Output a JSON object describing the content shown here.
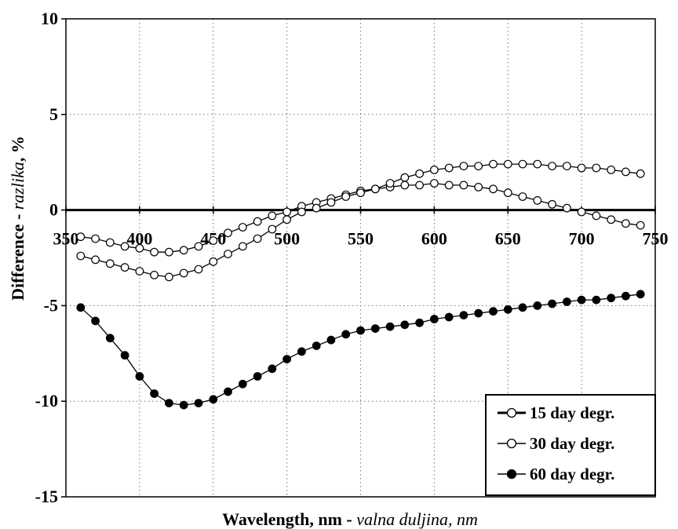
{
  "chart_data": {
    "type": "line",
    "xlim": [
      350,
      750
    ],
    "ylim": [
      -15,
      10
    ],
    "x_ticks": [
      350,
      400,
      450,
      500,
      550,
      600,
      650,
      700,
      750
    ],
    "y_ticks": [
      10,
      5,
      0,
      -5,
      -10,
      -15
    ],
    "x_tick_labels": [
      "350",
      "400",
      "450",
      "500",
      "550",
      "600",
      "650",
      "700",
      "750"
    ],
    "y_tick_labels": [
      "10",
      "5",
      "0",
      "-5",
      "-10",
      "-15"
    ],
    "xlabel_bold": "Wavelength, nm - ",
    "xlabel_italic": "valna duljina, nm",
    "ylabel_bold": "Difference - ",
    "ylabel_italic": "razlika",
    "ylabel_suffix": ", %",
    "grid": true,
    "legend_position": "bottom-right",
    "x": [
      360,
      370,
      380,
      390,
      400,
      410,
      420,
      430,
      440,
      450,
      460,
      470,
      480,
      490,
      500,
      510,
      520,
      530,
      540,
      550,
      560,
      570,
      580,
      590,
      600,
      610,
      620,
      630,
      640,
      650,
      660,
      670,
      680,
      690,
      700,
      710,
      720,
      730,
      740
    ],
    "series": [
      {
        "name": "15 day degr.",
        "marker": "open",
        "values": [
          -1.4,
          -1.5,
          -1.7,
          -1.9,
          -2.0,
          -2.2,
          -2.2,
          -2.1,
          -1.9,
          -1.6,
          -1.2,
          -0.9,
          -0.6,
          -0.3,
          -0.1,
          0.2,
          0.4,
          0.6,
          0.8,
          1.0,
          1.1,
          1.2,
          1.3,
          1.3,
          1.4,
          1.3,
          1.3,
          1.2,
          1.1,
          0.9,
          0.7,
          0.5,
          0.3,
          0.1,
          -0.1,
          -0.3,
          -0.5,
          -0.7,
          -0.8
        ]
      },
      {
        "name": "30 day degr.",
        "marker": "open",
        "values": [
          -2.4,
          -2.6,
          -2.8,
          -3.0,
          -3.2,
          -3.4,
          -3.5,
          -3.3,
          -3.1,
          -2.7,
          -2.3,
          -1.9,
          -1.5,
          -1.0,
          -0.5,
          -0.1,
          0.1,
          0.4,
          0.7,
          0.9,
          1.1,
          1.4,
          1.7,
          1.9,
          2.1,
          2.2,
          2.3,
          2.3,
          2.4,
          2.4,
          2.4,
          2.4,
          2.3,
          2.3,
          2.2,
          2.2,
          2.1,
          2.0,
          1.9
        ]
      },
      {
        "name": "60 day degr.",
        "marker": "filled",
        "values": [
          -5.1,
          -5.8,
          -6.7,
          -7.6,
          -8.7,
          -9.6,
          -10.1,
          -10.2,
          -10.1,
          -9.9,
          -9.5,
          -9.1,
          -8.7,
          -8.3,
          -7.8,
          -7.4,
          -7.1,
          -6.8,
          -6.5,
          -6.3,
          -6.2,
          -6.1,
          -6.0,
          -5.9,
          -5.7,
          -5.6,
          -5.5,
          -5.4,
          -5.3,
          -5.2,
          -5.1,
          -5.0,
          -4.9,
          -4.8,
          -4.7,
          -4.7,
          -4.6,
          -4.5,
          -4.4
        ]
      }
    ]
  }
}
